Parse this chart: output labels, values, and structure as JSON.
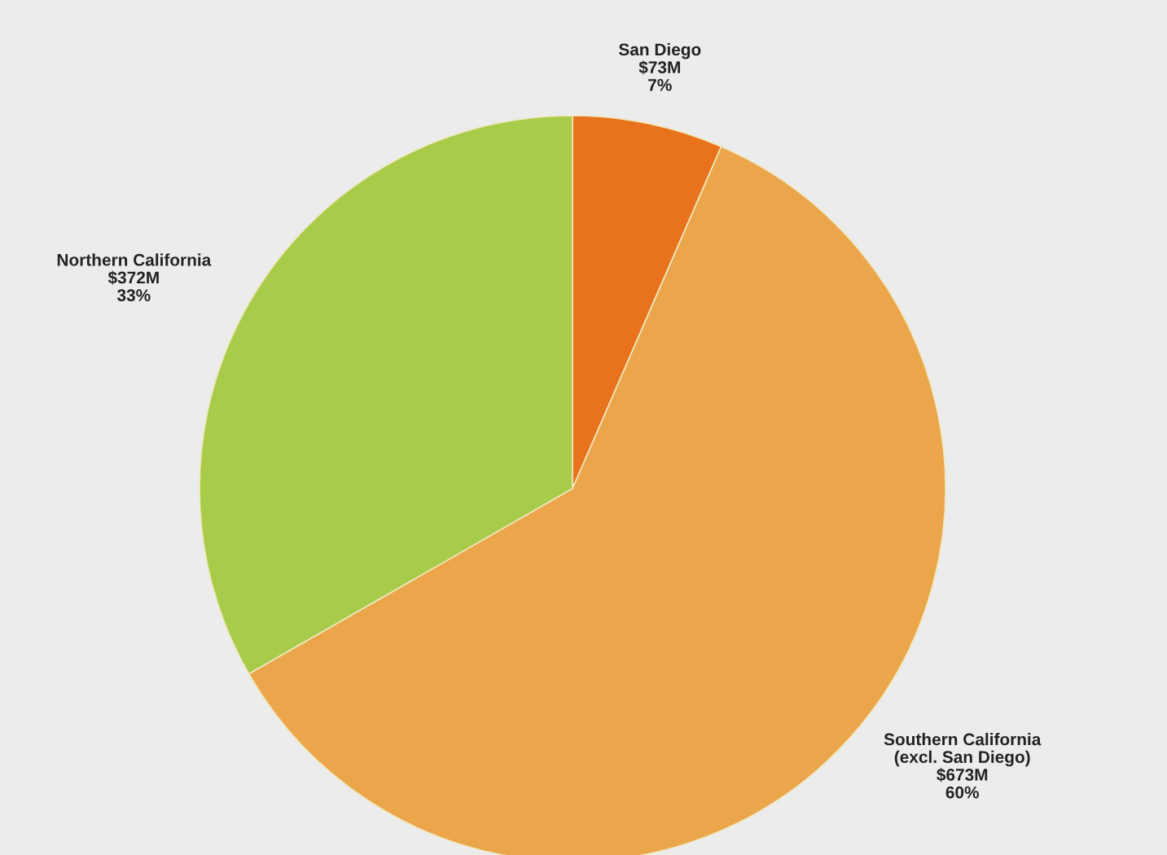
{
  "chart_data": {
    "type": "pie",
    "categories": [
      "San Diego",
      "Southern California\n(excl. San Diego)",
      "Northern California"
    ],
    "values": [
      73,
      673,
      372
    ],
    "value_labels": [
      "$73M",
      "$673M",
      "$372M"
    ],
    "annotations": [
      "7%",
      "60%",
      "33%"
    ],
    "colors": [
      "#e8731c",
      "#eba54a",
      "#a8cc4a"
    ]
  }
}
